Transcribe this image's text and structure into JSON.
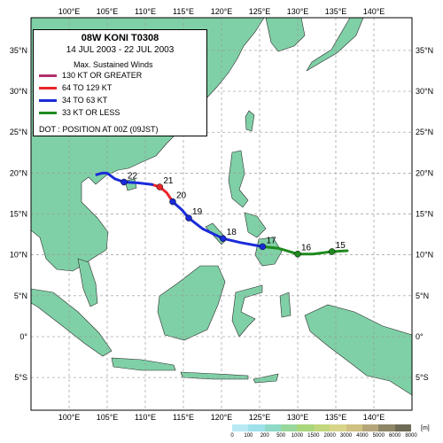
{
  "storm": {
    "name_line": "08W  KONI  T0308",
    "period": "14 JUL 2003 - 22 JUL 2003"
  },
  "legend": {
    "header": "Max. Sustained Winds",
    "items": [
      {
        "label": "130 KT OR GREATER",
        "color": "#b0306e"
      },
      {
        "label": "64 TO 129 KT",
        "color": "#e8262a"
      },
      {
        "label": "34 TO 63 KT",
        "color": "#1a2bd8"
      },
      {
        "label": "33 KT OR LESS",
        "color": "#1f8a1f"
      }
    ],
    "dot_note": "DOT : POSITION AT 00Z (09JST)"
  },
  "map": {
    "lon_min": 95,
    "lon_max": 145,
    "lat_min": -9,
    "lat_max": 39,
    "lon_labels": [
      "100°E",
      "105°E",
      "110°E",
      "115°E",
      "120°E",
      "125°E",
      "130°E",
      "135°E",
      "140°E"
    ],
    "lat_labels": [
      "35°N",
      "30°N",
      "25°N",
      "20°N",
      "15°N",
      "10°N",
      "5°N",
      "0°",
      "5°S"
    ],
    "ocean_color": "#ffffff",
    "land_color": "#7fd0a6"
  },
  "track": {
    "segments": [
      {
        "intensity": "33 KT OR LESS",
        "color": "#1f8a1f",
        "points": [
          [
            136.5,
            10.5
          ],
          [
            134.5,
            10.4
          ],
          [
            132,
            10.1
          ],
          [
            130,
            10.1
          ],
          [
            127.5,
            10.8
          ],
          [
            125.4,
            11.0
          ]
        ]
      },
      {
        "intensity": "34 TO 63 KT",
        "color": "#1a2bd8",
        "points": [
          [
            125.4,
            11.0
          ],
          [
            122.5,
            11.5
          ],
          [
            120.2,
            12.0
          ],
          [
            117.5,
            13.2
          ],
          [
            115.7,
            14.5
          ],
          [
            114.8,
            15.5
          ],
          [
            113.6,
            16.5
          ]
        ]
      },
      {
        "intensity": "64 TO 129 KT",
        "color": "#e8262a",
        "points": [
          [
            113.6,
            16.5
          ],
          [
            112.8,
            17.6
          ],
          [
            111.9,
            18.3
          ],
          [
            110.9,
            18.6
          ]
        ]
      },
      {
        "intensity": "34 TO 63 KT",
        "color": "#1a2bd8",
        "points": [
          [
            110.9,
            18.6
          ],
          [
            109.0,
            18.8
          ],
          [
            107.2,
            18.9
          ],
          [
            106.0,
            19.3
          ],
          [
            105.0,
            20.0
          ],
          [
            104.3,
            20.0
          ],
          [
            103.6,
            19.8
          ]
        ]
      }
    ],
    "positions": [
      {
        "day": "15",
        "lon": 134.5,
        "lat": 10.4
      },
      {
        "day": "16",
        "lon": 130.0,
        "lat": 10.1
      },
      {
        "day": "17",
        "lon": 125.4,
        "lat": 11.0
      },
      {
        "day": "18",
        "lon": 120.2,
        "lat": 12.0
      },
      {
        "day": "19",
        "lon": 115.7,
        "lat": 14.5
      },
      {
        "day": "20",
        "lon": 113.6,
        "lat": 16.5
      },
      {
        "day": "21",
        "lon": 111.9,
        "lat": 18.3
      },
      {
        "day": "22",
        "lon": 107.2,
        "lat": 18.9
      }
    ]
  },
  "elevation_scale": {
    "unit": "[m]",
    "ticks": [
      "0",
      "100",
      "200",
      "500",
      "1000",
      "1500",
      "2000",
      "3000",
      "4000",
      "5000",
      "6000",
      "8000"
    ],
    "colors": [
      "#b9e9f4",
      "#9fe0ea",
      "#8fd9c8",
      "#9ad79d",
      "#a8d67a",
      "#c0d77d",
      "#d7d58a",
      "#cfc083",
      "#b5a57a",
      "#8e8666",
      "#6f6a55"
    ]
  }
}
